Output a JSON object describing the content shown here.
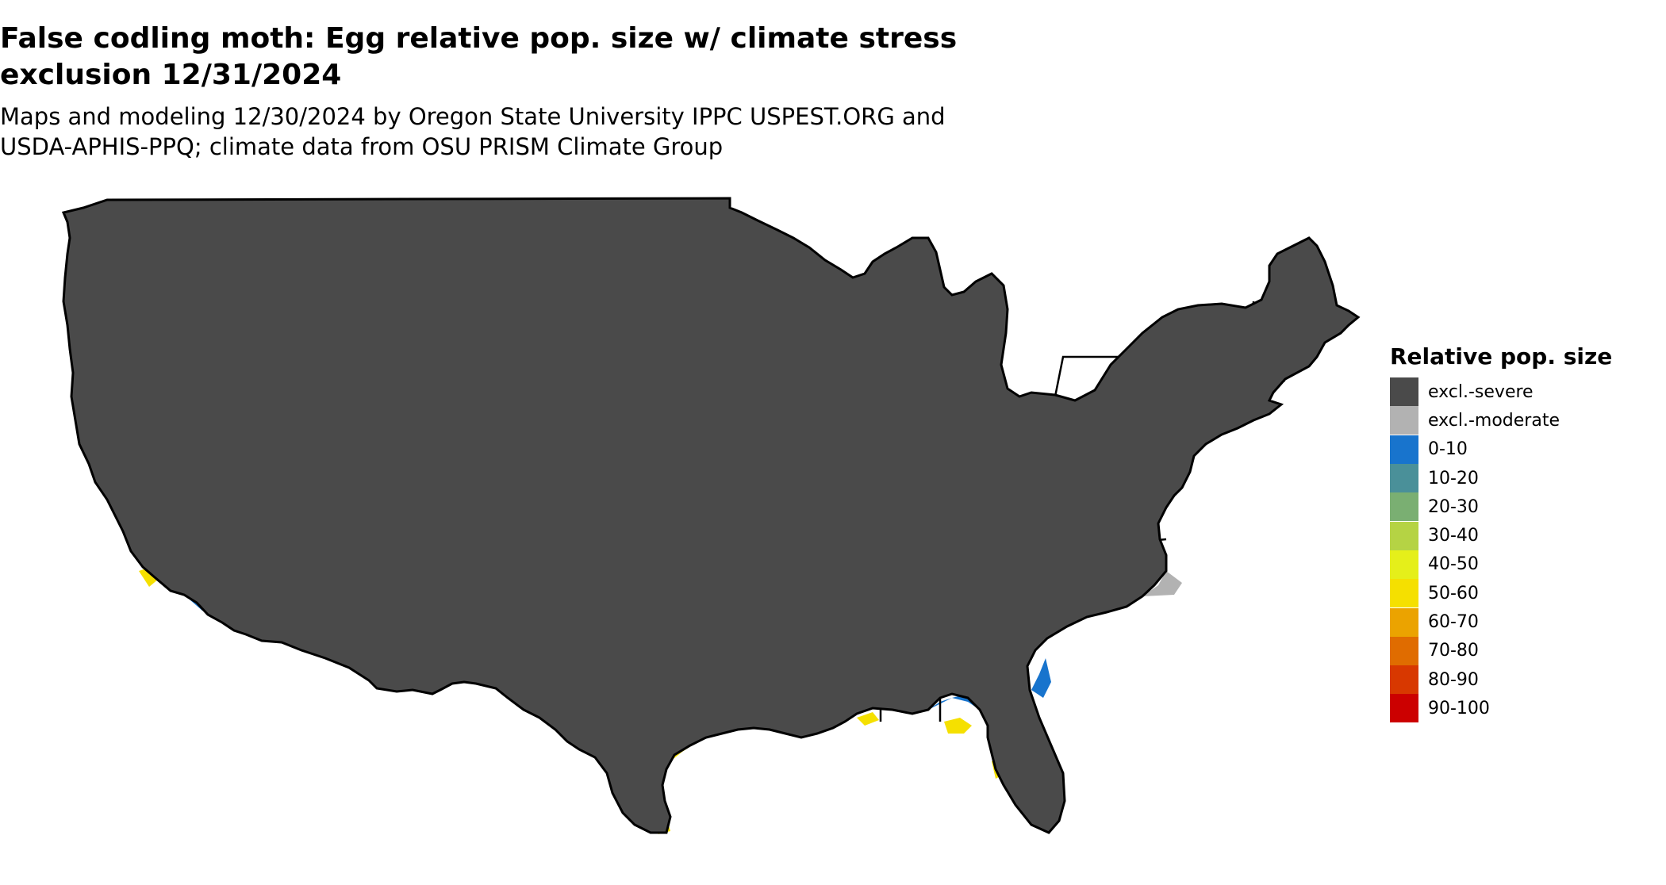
{
  "title_lines": [
    "False codling moth: Egg relative pop. size w/ climate stress",
    "exclusion 12/31/2024"
  ],
  "subtitle_lines": [
    "Maps and modeling 12/30/2024 by Oregon State University IPPC USPEST.ORG and",
    "USDA-APHIS-PPQ; climate data from OSU PRISM Climate Group"
  ],
  "legend": {
    "title": "Relative pop. size",
    "items": [
      {
        "label": "excl.-severe",
        "color": "#4a4a4a"
      },
      {
        "label": "excl.-moderate",
        "color": "#b2b2b2"
      },
      {
        "label": "0-10",
        "color": "#1874cd"
      },
      {
        "label": "10-20",
        "color": "#4a9099"
      },
      {
        "label": "20-30",
        "color": "#7aaf72"
      },
      {
        "label": "30-40",
        "color": "#b5d344"
      },
      {
        "label": "40-50",
        "color": "#e5ef1a"
      },
      {
        "label": "50-60",
        "color": "#f5e000"
      },
      {
        "label": "60-70",
        "color": "#eba300"
      },
      {
        "label": "70-80",
        "color": "#e06c00"
      },
      {
        "label": "80-90",
        "color": "#d83800"
      },
      {
        "label": "90-100",
        "color": "#cc0000"
      }
    ]
  },
  "colors": {
    "severe": "#4a4a4a",
    "moderate": "#b2b2b2",
    "low": "#1874cd",
    "mid": "#f5e000",
    "border": "#000000"
  }
}
